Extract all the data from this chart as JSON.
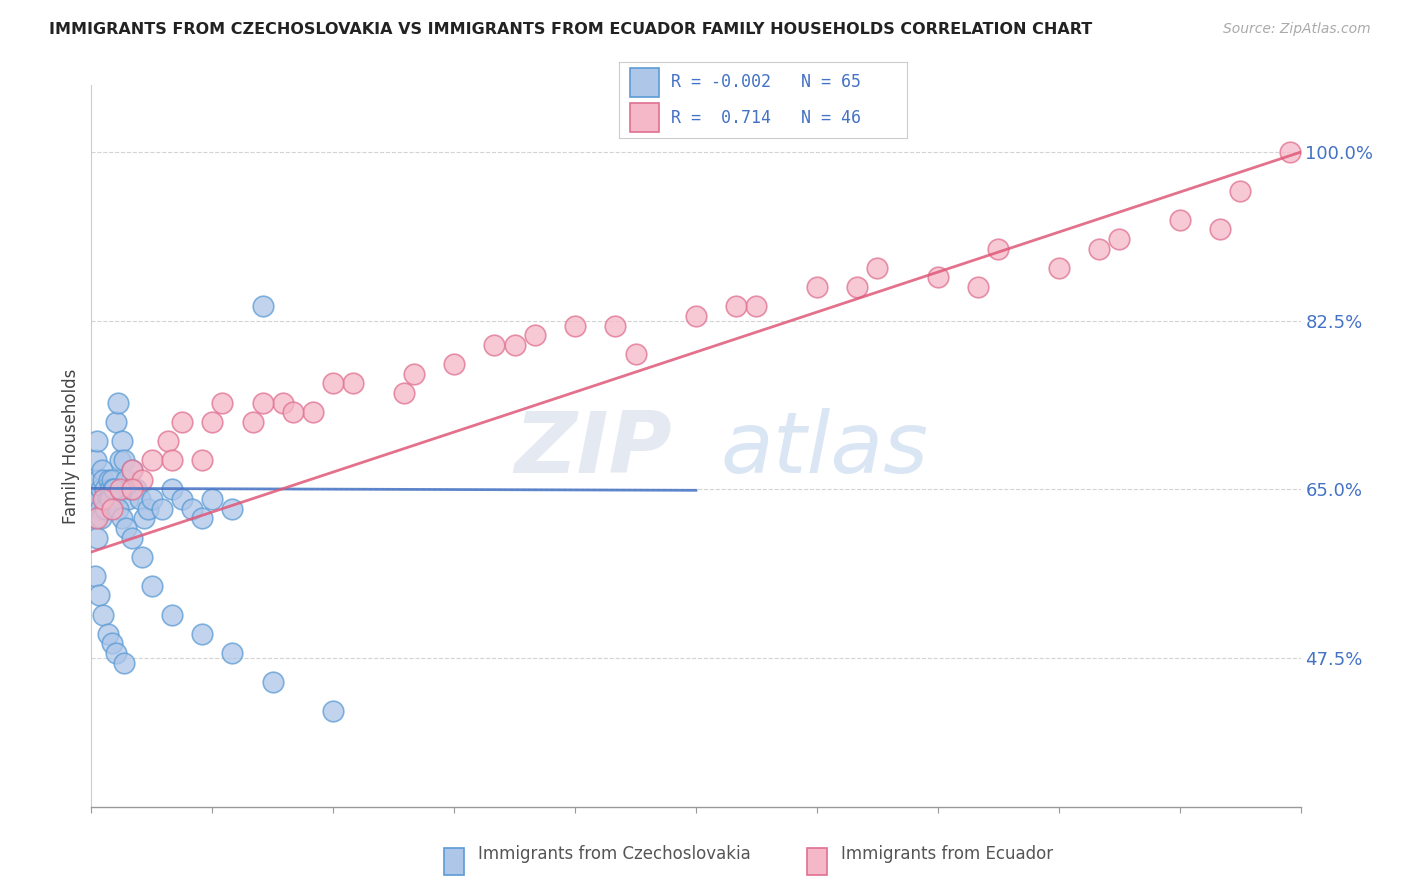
{
  "title": "IMMIGRANTS FROM CZECHOSLOVAKIA VS IMMIGRANTS FROM ECUADOR FAMILY HOUSEHOLDS CORRELATION CHART",
  "source": "Source: ZipAtlas.com",
  "ylabel": "Family Households",
  "y_ticks": [
    47.5,
    65.0,
    82.5,
    100.0
  ],
  "y_tick_labels": [
    "47.5%",
    "65.0%",
    "82.5%",
    "100.0%"
  ],
  "xlim": [
    0.0,
    60.0
  ],
  "ylim": [
    32.0,
    107.0
  ],
  "r_blue": "-0.002",
  "n_blue": "65",
  "r_pink": "0.714",
  "n_pink": "46",
  "color_blue_fill": "#aec6e8",
  "color_blue_edge": "#5b9bd5",
  "color_pink_fill": "#f4b8c8",
  "color_pink_edge": "#e07090",
  "color_blue_line": "#4472C4",
  "color_pink_line": "#e05878",
  "color_axis_labels": "#4472C4",
  "color_grid": "#c8c8c8",
  "color_title": "#222222",
  "color_source": "#aaaaaa",
  "watermark_zip": "ZIP",
  "watermark_atlas": "atlas",
  "legend_label_blue": "Immigrants from Czechoslovakia",
  "legend_label_pink": "Immigrants from Ecuador",
  "blue_x": [
    0.15,
    0.2,
    0.25,
    0.3,
    0.35,
    0.4,
    0.45,
    0.5,
    0.55,
    0.6,
    0.65,
    0.7,
    0.75,
    0.8,
    0.85,
    0.9,
    0.95,
    1.0,
    1.05,
    1.1,
    1.2,
    1.3,
    1.4,
    1.5,
    1.6,
    1.7,
    1.8,
    1.9,
    2.0,
    2.2,
    2.4,
    2.6,
    2.8,
    3.0,
    3.5,
    4.0,
    4.5,
    5.0,
    5.5,
    6.0,
    7.0,
    8.5,
    0.3,
    0.5,
    0.7,
    0.9,
    1.1,
    1.3,
    1.5,
    1.7,
    2.0,
    2.5,
    3.0,
    4.0,
    5.5,
    7.0,
    9.0,
    12.0,
    0.2,
    0.4,
    0.6,
    0.8,
    1.0,
    1.2,
    1.6
  ],
  "blue_y": [
    64,
    62,
    68,
    70,
    66,
    64,
    63,
    65,
    67,
    66,
    64,
    65,
    63,
    64,
    66,
    65,
    64,
    66,
    65,
    64,
    72,
    74,
    68,
    70,
    68,
    66,
    64,
    65,
    67,
    65,
    64,
    62,
    63,
    64,
    63,
    65,
    64,
    63,
    62,
    64,
    63,
    84,
    60,
    62,
    63,
    64,
    65,
    63,
    62,
    61,
    60,
    58,
    55,
    52,
    50,
    48,
    45,
    42,
    56,
    54,
    52,
    50,
    49,
    48,
    47
  ],
  "pink_x": [
    0.3,
    0.6,
    1.0,
    1.4,
    2.0,
    2.5,
    3.0,
    3.8,
    4.5,
    5.5,
    6.5,
    8.0,
    9.5,
    11.0,
    13.0,
    15.5,
    18.0,
    21.0,
    24.0,
    27.0,
    30.0,
    33.0,
    36.0,
    39.0,
    42.0,
    45.0,
    48.0,
    51.0,
    54.0,
    57.0,
    59.5,
    2.0,
    4.0,
    6.0,
    8.5,
    12.0,
    16.0,
    20.0,
    26.0,
    32.0,
    38.0,
    44.0,
    50.0,
    56.0,
    22.0,
    10.0
  ],
  "pink_y": [
    62,
    64,
    63,
    65,
    67,
    66,
    68,
    70,
    72,
    68,
    74,
    72,
    74,
    73,
    76,
    75,
    78,
    80,
    82,
    79,
    83,
    84,
    86,
    88,
    87,
    90,
    88,
    91,
    93,
    96,
    100,
    65,
    68,
    72,
    74,
    76,
    77,
    80,
    82,
    84,
    86,
    86,
    90,
    92,
    81,
    73
  ],
  "blue_line_x": [
    0.0,
    30.0
  ],
  "blue_line_y": [
    65.1,
    64.9
  ],
  "pink_line_x": [
    0.0,
    60.0
  ],
  "pink_line_y": [
    58.5,
    100.0
  ]
}
